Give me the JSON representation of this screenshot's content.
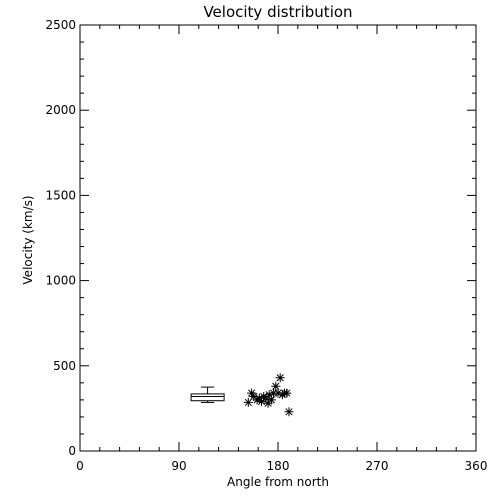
{
  "chart_data": {
    "type": "scatter",
    "title": "Velocity distribution",
    "xlabel": "Angle from north",
    "ylabel": "Velocity (km/s)",
    "xlim": [
      0,
      360
    ],
    "ylim": [
      0,
      2500
    ],
    "xticks": [
      0,
      90,
      180,
      270,
      360
    ],
    "yticks": [
      0,
      500,
      1000,
      1500,
      2000,
      2500
    ],
    "x_minor_step": 18,
    "y_minor_step": 100,
    "grid": false,
    "marker": "asterisk",
    "points": [
      {
        "x": 153,
        "y": 285
      },
      {
        "x": 156,
        "y": 340
      },
      {
        "x": 158,
        "y": 320
      },
      {
        "x": 161,
        "y": 300
      },
      {
        "x": 163,
        "y": 310
      },
      {
        "x": 165,
        "y": 290
      },
      {
        "x": 167,
        "y": 320
      },
      {
        "x": 169,
        "y": 310
      },
      {
        "x": 171,
        "y": 280
      },
      {
        "x": 172,
        "y": 330
      },
      {
        "x": 174,
        "y": 300
      },
      {
        "x": 176,
        "y": 340
      },
      {
        "x": 178,
        "y": 380
      },
      {
        "x": 180,
        "y": 340
      },
      {
        "x": 182,
        "y": 430
      },
      {
        "x": 184,
        "y": 330
      },
      {
        "x": 186,
        "y": 340
      },
      {
        "x": 188,
        "y": 340
      },
      {
        "x": 190,
        "y": 230
      }
    ],
    "boxplot": {
      "x_min": 101,
      "x_max": 131,
      "whisker_low": 285,
      "q1": 295,
      "median": 320,
      "q3": 335,
      "whisker_high": 375
    }
  }
}
